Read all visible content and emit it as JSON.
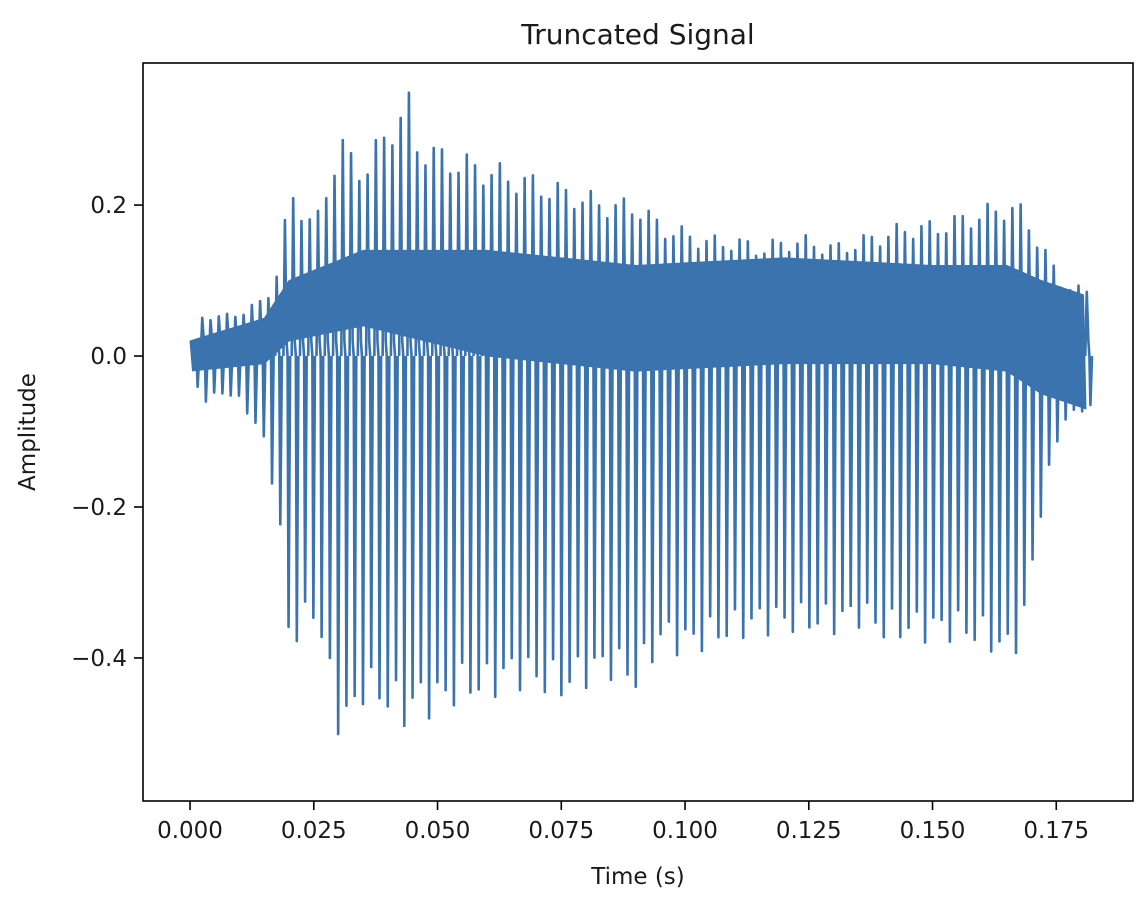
{
  "chart_data": {
    "type": "line",
    "title": "Truncated Signal",
    "xlabel": "Time (s)",
    "ylabel": "Amplitude",
    "xlim": [
      -0.0095,
      0.1905
    ],
    "ylim": [
      -0.5895,
      0.3882
    ],
    "x_ticks": [
      0.0,
      0.025,
      0.05,
      0.075,
      0.1,
      0.125,
      0.15,
      0.175
    ],
    "x_tick_labels": [
      "0.000",
      "0.025",
      "0.050",
      "0.075",
      "0.100",
      "0.125",
      "0.150",
      "0.175"
    ],
    "y_ticks": [
      -0.4,
      -0.2,
      0.0,
      0.2
    ],
    "y_tick_labels": [
      "−0.4",
      "−0.2",
      "0.0",
      "0.2"
    ],
    "grid": false,
    "series": [
      {
        "color": "#3a73ad",
        "cycle_period": 0.00167,
        "duration": 0.181,
        "peak_envelope": {
          "t": [
            0.0,
            0.002,
            0.006,
            0.01,
            0.015,
            0.0175,
            0.02,
            0.025,
            0.03,
            0.0315,
            0.035,
            0.04,
            0.044,
            0.045,
            0.05,
            0.055,
            0.06,
            0.065,
            0.07,
            0.075,
            0.08,
            0.085,
            0.09,
            0.095,
            0.1,
            0.105,
            0.11,
            0.115,
            0.12,
            0.125,
            0.13,
            0.135,
            0.14,
            0.145,
            0.15,
            0.155,
            0.16,
            0.165,
            0.168,
            0.172,
            0.176,
            0.181
          ],
          "max": [
            0.0,
            0.055,
            0.055,
            0.06,
            0.08,
            0.12,
            0.23,
            0.18,
            0.3,
            0.28,
            0.26,
            0.32,
            0.35,
            0.3,
            0.28,
            0.27,
            0.26,
            0.25,
            0.24,
            0.23,
            0.22,
            0.21,
            0.21,
            0.18,
            0.17,
            0.16,
            0.16,
            0.15,
            0.16,
            0.16,
            0.15,
            0.16,
            0.17,
            0.18,
            0.18,
            0.19,
            0.2,
            0.21,
            0.2,
            0.15,
            0.1,
            0.09
          ]
        },
        "trough_envelope": {
          "t": [
            0.0,
            0.002,
            0.006,
            0.01,
            0.015,
            0.0175,
            0.02,
            0.025,
            0.03,
            0.0315,
            0.035,
            0.04,
            0.044,
            0.045,
            0.05,
            0.055,
            0.06,
            0.065,
            0.07,
            0.075,
            0.08,
            0.085,
            0.09,
            0.095,
            0.1,
            0.105,
            0.11,
            0.115,
            0.12,
            0.125,
            0.13,
            0.135,
            0.14,
            0.145,
            0.15,
            0.155,
            0.16,
            0.165,
            0.168,
            0.172,
            0.176,
            0.181
          ],
          "min": [
            0.0,
            -0.065,
            -0.05,
            -0.06,
            -0.12,
            -0.21,
            -0.4,
            -0.35,
            -0.51,
            -0.51,
            -0.46,
            -0.48,
            -0.5,
            -0.48,
            -0.48,
            -0.46,
            -0.46,
            -0.44,
            -0.45,
            -0.46,
            -0.44,
            -0.43,
            -0.45,
            -0.39,
            -0.4,
            -0.39,
            -0.38,
            -0.37,
            -0.37,
            -0.37,
            -0.37,
            -0.36,
            -0.38,
            -0.38,
            -0.38,
            -0.38,
            -0.39,
            -0.41,
            -0.38,
            -0.2,
            -0.09,
            -0.07
          ]
        },
        "band_upper": {
          "t": [
            0.0,
            0.015,
            0.02,
            0.035,
            0.06,
            0.09,
            0.12,
            0.15,
            0.165,
            0.172,
            0.181
          ],
          "y": [
            0.02,
            0.05,
            0.1,
            0.14,
            0.14,
            0.12,
            0.13,
            0.12,
            0.12,
            0.1,
            0.08
          ]
        },
        "band_lower": {
          "t": [
            0.0,
            0.015,
            0.02,
            0.035,
            0.06,
            0.09,
            0.12,
            0.15,
            0.165,
            0.172,
            0.181
          ],
          "y": [
            -0.02,
            -0.01,
            0.02,
            0.04,
            0.0,
            -0.02,
            -0.01,
            -0.01,
            -0.02,
            -0.05,
            -0.07
          ]
        }
      }
    ]
  }
}
